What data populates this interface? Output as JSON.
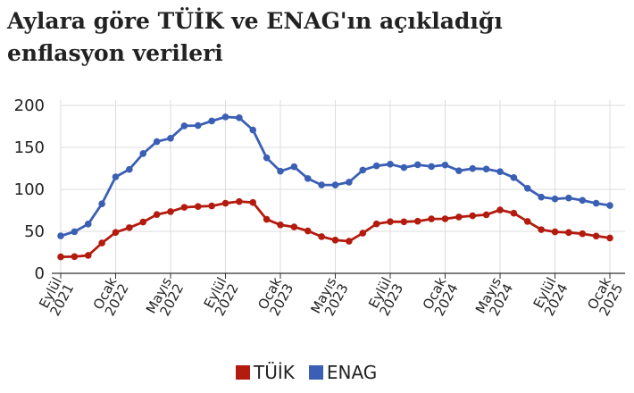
{
  "title": {
    "line1": "Aylara göre TÜİK ve ENAG'ın açıkladığı",
    "line2": "enflasyon verileri"
  },
  "legend": [
    {
      "label": "TÜİK",
      "color": "#b31b0f"
    },
    {
      "label": "ENAG",
      "color": "#3a5fb4"
    }
  ],
  "chart_data": {
    "type": "line",
    "title": "Aylara göre TÜİK ve ENAG'ın açıkladığı enflasyon verileri",
    "xlabel": "",
    "ylabel": "",
    "ylim": [
      0,
      200
    ],
    "yticks": [
      0,
      50,
      100,
      150,
      200
    ],
    "grid": true,
    "legend_position": "bottom",
    "x": [
      "2021-09",
      "2021-10",
      "2021-11",
      "2021-12",
      "2022-01",
      "2022-02",
      "2022-03",
      "2022-04",
      "2022-05",
      "2022-06",
      "2022-07",
      "2022-08",
      "2022-09",
      "2022-10",
      "2022-11",
      "2022-12",
      "2023-01",
      "2023-02",
      "2023-03",
      "2023-04",
      "2023-05",
      "2023-06",
      "2023-07",
      "2023-08",
      "2023-09",
      "2023-10",
      "2023-11",
      "2023-12",
      "2024-01",
      "2024-02",
      "2024-03",
      "2024-04",
      "2024-05",
      "2024-06",
      "2024-07",
      "2024-08",
      "2024-09",
      "2024-10",
      "2024-11",
      "2024-12",
      "2025-01"
    ],
    "xticks": [
      {
        "month": "Eylül",
        "year": "2021",
        "index": 0
      },
      {
        "month": "Ocak",
        "year": "2022",
        "index": 4
      },
      {
        "month": "Mayıs",
        "year": "2022",
        "index": 8
      },
      {
        "month": "Eylül",
        "year": "2022",
        "index": 12
      },
      {
        "month": "Ocak",
        "year": "2023",
        "index": 16
      },
      {
        "month": "Mayıs",
        "year": "2023",
        "index": 20
      },
      {
        "month": "Eylül",
        "year": "2023",
        "index": 24
      },
      {
        "month": "Ocak",
        "year": "2024",
        "index": 28
      },
      {
        "month": "Mayıs",
        "year": "2024",
        "index": 32
      },
      {
        "month": "Eylül",
        "year": "2024",
        "index": 36
      },
      {
        "month": "Ocak",
        "year": "2025",
        "index": 40
      }
    ],
    "series": [
      {
        "name": "TÜİK",
        "color": "#b31b0f",
        "values": [
          19.6,
          19.9,
          21.3,
          36.1,
          48.7,
          54.4,
          61.1,
          70.0,
          73.5,
          78.6,
          79.6,
          80.2,
          83.5,
          85.5,
          84.4,
          64.3,
          57.7,
          55.2,
          50.5,
          43.7,
          39.6,
          38.2,
          47.8,
          58.9,
          61.5,
          61.4,
          62.0,
          64.8,
          64.9,
          67.1,
          68.5,
          69.8,
          75.5,
          71.6,
          61.8,
          52.0,
          49.4,
          48.6,
          47.1,
          44.4,
          42.1
        ]
      },
      {
        "name": "ENAG",
        "color": "#3a5fb4",
        "values": [
          44.6,
          49.6,
          58.7,
          82.8,
          114.9,
          123.8,
          142.6,
          156.9,
          160.8,
          175.6,
          176.0,
          181.4,
          186.3,
          185.3,
          170.7,
          137.6,
          121.6,
          126.9,
          112.9,
          105.2,
          105.2,
          108.6,
          122.9,
          128.0,
          130.0,
          126.0,
          129.3,
          127.2,
          129.0,
          122.2,
          124.8,
          124.2,
          121.1,
          114.0,
          101.3,
          90.8,
          88.6,
          89.7,
          86.9,
          83.4,
          80.8
        ]
      }
    ]
  }
}
